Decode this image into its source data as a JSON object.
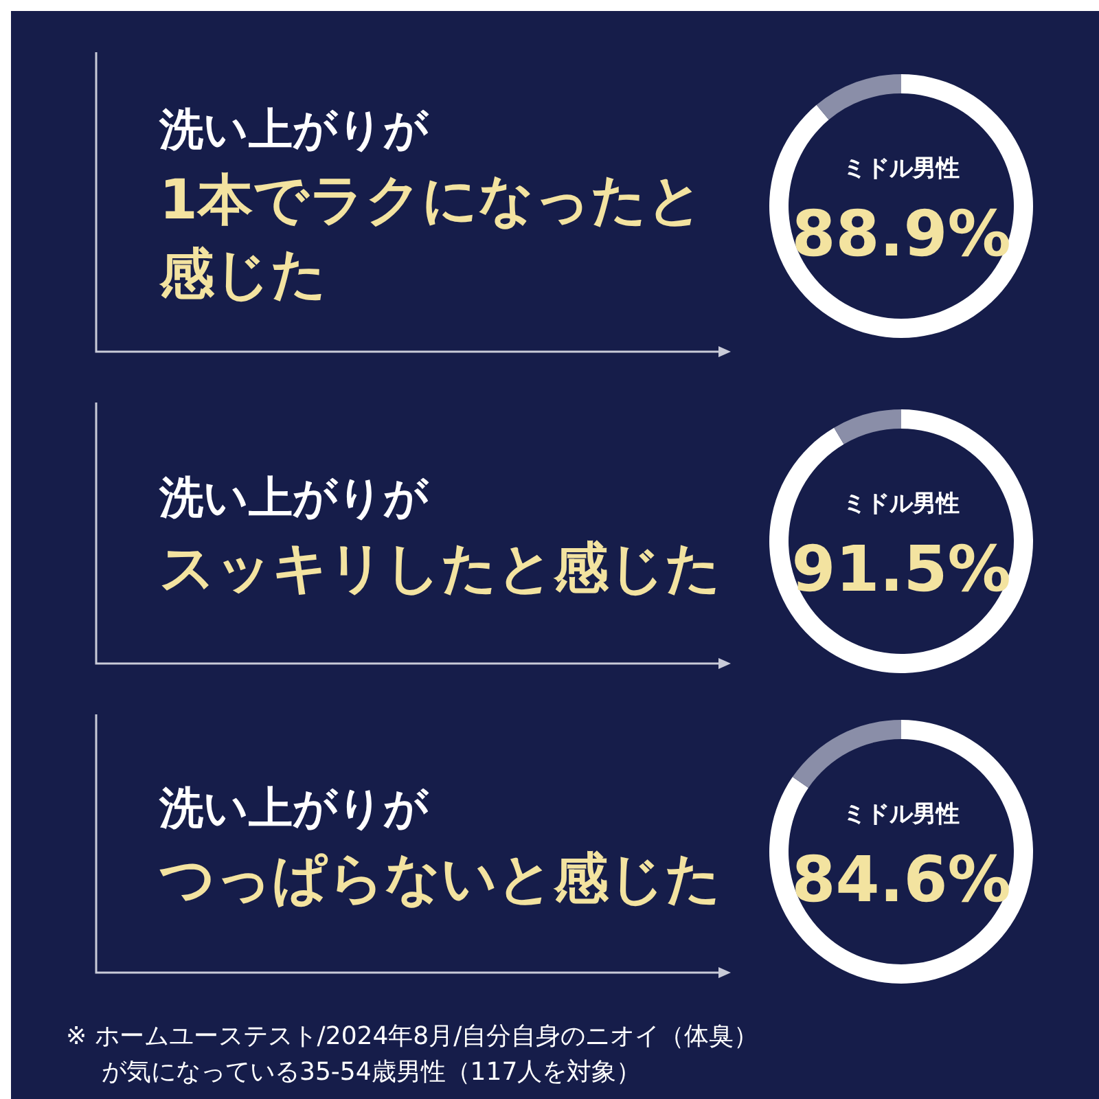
{
  "chart_data": [
    {
      "type": "donut",
      "title": "洗い上がりが",
      "subtitle": "1本でラクになったと感じた",
      "categories": [
        "ミドル男性",
        null
      ],
      "values": [
        88.9,
        11.1
      ],
      "colors": [
        "#ffffff",
        "#8a8ea8"
      ],
      "value_labels": [
        "88.9%",
        null
      ]
    },
    {
      "type": "donut",
      "title": "洗い上がりが",
      "subtitle": "スッキリしたと感じた",
      "categories": [
        "ミドル男性",
        null
      ],
      "values": [
        91.5,
        8.5
      ],
      "colors": [
        "#ffffff",
        "#8a8ea8"
      ],
      "value_labels": [
        "91.5%",
        null
      ]
    },
    {
      "type": "donut",
      "title": "洗い上がりが",
      "subtitle": "つっぱらないと感じた",
      "categories": [
        "ミドル男性",
        null
      ],
      "values": [
        84.6,
        15.4
      ],
      "colors": [
        "#ffffff",
        "#8a8ea8"
      ],
      "value_labels": [
        "84.6%",
        null
      ],
      "annotations": [
        "※ ホームユーステスト/2024年8月/自分自身のニオイ（体臭）が気になっている35-54歳男性（117人を対象）"
      ]
    }
  ]
}
